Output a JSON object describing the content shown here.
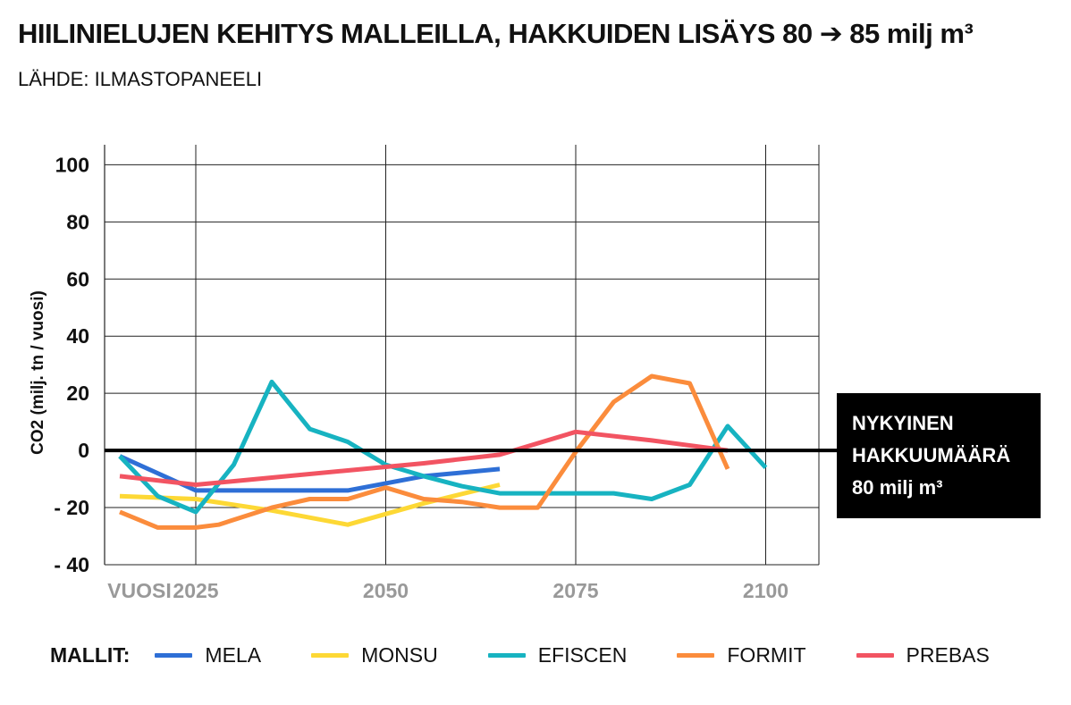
{
  "title": "HIILINIELUJEN KEHITYS MALLEILLA, HAKKUIDEN LISÄYS 80 ➔ 85 milj m³",
  "subtitle": "LÄHDE: ILMASTOPANEELI",
  "chart_data": {
    "type": "line",
    "title": "HIILINIELUJEN KEHITYS MALLEILLA, HAKKUIDEN LISÄYS 80 ➔ 85 milj m³",
    "subtitle": "LÄHDE: ILMASTOPANEELI",
    "ylabel": "CO2 (milj. tn / vuosi)",
    "xlabel": "VUOSI",
    "xlim": [
      2013,
      2107
    ],
    "ylim": [
      -40,
      107
    ],
    "xticks": [
      2025,
      2050,
      2075,
      2100
    ],
    "yticks": [
      100,
      80,
      60,
      40,
      20,
      0,
      -20,
      -40
    ],
    "ytick_labels": [
      "100",
      "80",
      "60",
      "40",
      "20",
      "0",
      "- 20",
      "- 40"
    ],
    "grid": true,
    "reference_line": {
      "y": 0,
      "label_lines": [
        "NYKYINEN",
        "HAKKUUMÄÄRÄ",
        "80 milj m³"
      ]
    },
    "legend_title": "MALLIT:",
    "legend_position": "bottom",
    "series": [
      {
        "name": "MELA",
        "color": "#2e6fd6",
        "x": [
          2015,
          2025,
          2035,
          2045,
          2055,
          2065
        ],
        "y": [
          -2,
          -14,
          -14,
          -14,
          -9,
          -6.5
        ]
      },
      {
        "name": "MONSU",
        "color": "#fdd835",
        "x": [
          2015,
          2025,
          2035,
          2045,
          2055,
          2065
        ],
        "y": [
          -16,
          -17,
          -21,
          -26,
          -18.5,
          -12
        ]
      },
      {
        "name": "EFISCEN",
        "color": "#17b3c1",
        "x": [
          2015,
          2020,
          2025,
          2030,
          2035,
          2040,
          2045,
          2050,
          2055,
          2060,
          2065,
          2070,
          2075,
          2080,
          2085,
          2090,
          2095,
          2100
        ],
        "y": [
          -2,
          -16,
          -21.5,
          -5,
          24,
          7.5,
          3,
          -5,
          -9,
          -12.5,
          -15,
          -15,
          -15,
          -15,
          -17,
          -12,
          8.5,
          -6
        ]
      },
      {
        "name": "FORMIT",
        "color": "#fb8c3c",
        "x": [
          2015,
          2020,
          2025,
          2028,
          2035,
          2040,
          2045,
          2050,
          2055,
          2060,
          2065,
          2070,
          2075,
          2080,
          2085,
          2090,
          2095
        ],
        "y": [
          -21.5,
          -27,
          -27,
          -26,
          -20,
          -17,
          -17,
          -13,
          -17,
          -18,
          -20,
          -20,
          -0.5,
          17,
          26,
          23.5,
          -6.5
        ]
      },
      {
        "name": "PREBAS",
        "color": "#f25462",
        "x": [
          2015,
          2025,
          2035,
          2045,
          2055,
          2065,
          2075,
          2085,
          2095
        ],
        "y": [
          -9,
          -12,
          -9.5,
          -7,
          -4.5,
          -1.5,
          6.5,
          3.5,
          0
        ]
      }
    ]
  }
}
